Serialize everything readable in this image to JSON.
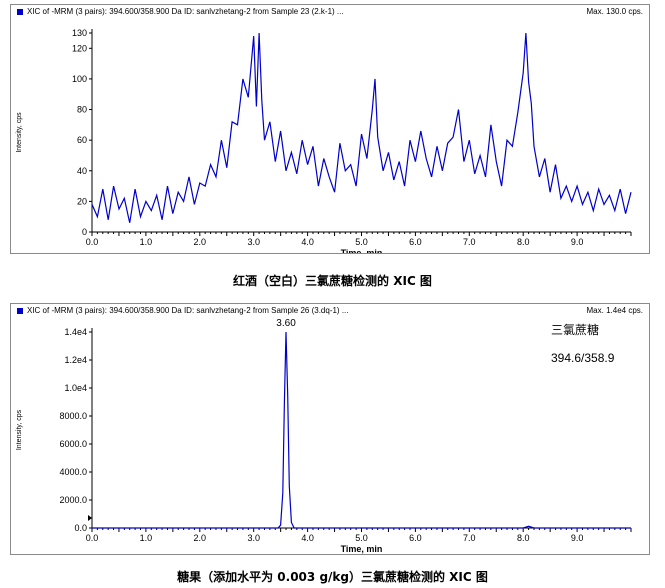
{
  "chart_data": [
    {
      "type": "line",
      "header": "XIC of -MRM (3 pairs): 394.600/358.900 Da ID: sanlvzhetang-2 from Sample 23 (2.k-1) ...",
      "max_label": "Max. 130.0 cps.",
      "xlabel": "Time, min",
      "ylabel": "Intensity, cps",
      "xlim": [
        0.0,
        10.0
      ],
      "ylim": [
        0,
        130
      ],
      "x_ticks": [
        "0.0",
        "1.0",
        "2.0",
        "3.0",
        "4.0",
        "5.0",
        "6.0",
        "7.0",
        "8.0",
        "9.0"
      ],
      "y_ticks": [
        "0",
        "20",
        "40",
        "60",
        "80",
        "100",
        "120",
        "130"
      ],
      "series": [
        {
          "color": "#0000cc",
          "x": [
            0.0,
            0.1,
            0.2,
            0.3,
            0.4,
            0.5,
            0.6,
            0.7,
            0.8,
            0.9,
            1.0,
            1.1,
            1.2,
            1.3,
            1.4,
            1.5,
            1.6,
            1.7,
            1.8,
            1.9,
            2.0,
            2.1,
            2.2,
            2.3,
            2.4,
            2.5,
            2.6,
            2.7,
            2.8,
            2.9,
            3.0,
            3.05,
            3.1,
            3.15,
            3.2,
            3.3,
            3.4,
            3.5,
            3.6,
            3.7,
            3.8,
            3.9,
            4.0,
            4.1,
            4.2,
            4.3,
            4.4,
            4.5,
            4.6,
            4.7,
            4.8,
            4.9,
            5.0,
            5.1,
            5.2,
            5.25,
            5.3,
            5.4,
            5.5,
            5.6,
            5.7,
            5.8,
            5.9,
            6.0,
            6.1,
            6.2,
            6.3,
            6.4,
            6.5,
            6.6,
            6.7,
            6.8,
            6.9,
            7.0,
            7.1,
            7.2,
            7.3,
            7.4,
            7.5,
            7.6,
            7.7,
            7.8,
            7.9,
            8.0,
            8.05,
            8.1,
            8.15,
            8.2,
            8.3,
            8.4,
            8.5,
            8.6,
            8.7,
            8.8,
            8.9,
            9.0,
            9.1,
            9.2,
            9.3,
            9.4,
            9.5,
            9.6,
            9.7,
            9.8,
            9.9,
            10.0
          ],
          "y": [
            18,
            10,
            28,
            8,
            30,
            15,
            22,
            6,
            28,
            10,
            20,
            14,
            24,
            8,
            30,
            12,
            26,
            20,
            36,
            18,
            32,
            30,
            44,
            36,
            60,
            42,
            72,
            70,
            100,
            88,
            128,
            82,
            130,
            86,
            60,
            72,
            46,
            66,
            40,
            52,
            38,
            60,
            44,
            56,
            30,
            48,
            36,
            26,
            58,
            40,
            44,
            30,
            64,
            48,
            80,
            100,
            62,
            40,
            52,
            34,
            46,
            30,
            60,
            46,
            66,
            48,
            36,
            56,
            40,
            58,
            62,
            80,
            46,
            60,
            38,
            50,
            36,
            70,
            46,
            30,
            60,
            56,
            78,
            104,
            130,
            98,
            84,
            56,
            36,
            48,
            26,
            44,
            22,
            30,
            20,
            30,
            18,
            26,
            14,
            28,
            18,
            24,
            14,
            28,
            12,
            26
          ]
        }
      ]
    },
    {
      "type": "line",
      "header": "XIC of -MRM (3 pairs): 394.600/358.900 Da ID: sanlvzhetang-2 from Sample 26 (3.dq-1) ...",
      "max_label": "Max. 1.4e4 cps.",
      "xlabel": "Time, min",
      "ylabel": "Intensity, cps",
      "xlim": [
        0.0,
        10.0
      ],
      "ylim": [
        0,
        14000
      ],
      "x_ticks": [
        "0.0",
        "1.0",
        "2.0",
        "3.0",
        "4.0",
        "5.0",
        "6.0",
        "7.0",
        "8.0",
        "9.0"
      ],
      "y_ticks": [
        "0.0",
        "2000.0",
        "4000.0",
        "6000.0",
        "8000.0",
        "1.0e4",
        "1.2e4",
        "1.4e4"
      ],
      "peak_label": "3.60",
      "annotation_name": "三氯蔗糖",
      "annotation_transition": "394.6/358.9",
      "series": [
        {
          "color": "#0000cc",
          "x": [
            0.0,
            1.0,
            2.0,
            3.0,
            3.45,
            3.5,
            3.54,
            3.57,
            3.6,
            3.63,
            3.66,
            3.7,
            3.75,
            4.0,
            5.0,
            6.0,
            7.0,
            8.0,
            8.1,
            8.2,
            9.0,
            10.0
          ],
          "y": [
            0,
            0,
            0,
            0,
            0,
            200,
            2500,
            9000,
            14400,
            9500,
            3000,
            400,
            0,
            0,
            0,
            0,
            0,
            0,
            120,
            0,
            0,
            0
          ]
        }
      ]
    }
  ],
  "captions": [
    "红酒（空白）三氯蔗糖检测的 XIC 图",
    "糖果（添加水平为 0.003 g/kg）三氯蔗糖检测的 XIC 图"
  ]
}
